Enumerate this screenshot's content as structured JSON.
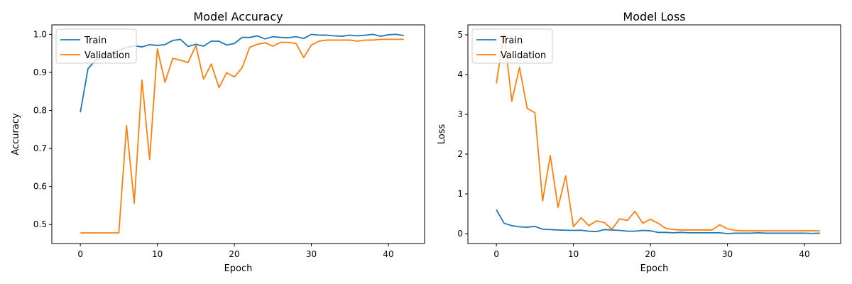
{
  "figure": {
    "background": "#ffffff"
  },
  "chart_data": [
    {
      "type": "line",
      "title": "Model Accuracy",
      "xlabel": "Epoch",
      "ylabel": "Accuracy",
      "xlim": [
        -3.7,
        44.7
      ],
      "ylim": [
        0.45,
        1.025
      ],
      "xticks": [
        0,
        10,
        20,
        30,
        40
      ],
      "xtick_labels": [
        "0",
        "10",
        "20",
        "30",
        "40"
      ],
      "yticks": [
        0.5,
        0.6,
        0.7,
        0.8,
        0.9,
        1.0
      ],
      "ytick_labels": [
        "0.5",
        "0.6",
        "0.7",
        "0.8",
        "0.9",
        "1.0"
      ],
      "grid": false,
      "legend_position": "top-left",
      "x": [
        0,
        1,
        2,
        3,
        4,
        5,
        6,
        7,
        8,
        9,
        10,
        11,
        12,
        13,
        14,
        15,
        16,
        17,
        18,
        19,
        20,
        21,
        22,
        23,
        24,
        25,
        26,
        27,
        28,
        29,
        30,
        31,
        32,
        33,
        34,
        35,
        36,
        37,
        38,
        39,
        40,
        41,
        42
      ],
      "series": [
        {
          "name": "Train",
          "color": "#1f77b4",
          "values": [
            0.795,
            0.91,
            0.932,
            0.945,
            0.952,
            0.958,
            0.965,
            0.97,
            0.967,
            0.973,
            0.971,
            0.973,
            0.984,
            0.987,
            0.968,
            0.974,
            0.969,
            0.982,
            0.982,
            0.972,
            0.976,
            0.992,
            0.992,
            0.996,
            0.988,
            0.994,
            0.992,
            0.991,
            0.994,
            0.989,
            1.0,
            0.998,
            0.998,
            0.996,
            0.995,
            0.998,
            0.996,
            0.998,
            1.0,
            0.995,
            0.999,
            1.0,
            0.997
          ]
        },
        {
          "name": "Validation",
          "color": "#ff7f0e",
          "values": [
            0.478,
            0.478,
            0.478,
            0.478,
            0.478,
            0.478,
            0.76,
            0.556,
            0.88,
            0.671,
            0.962,
            0.874,
            0.937,
            0.932,
            0.926,
            0.971,
            0.882,
            0.922,
            0.86,
            0.899,
            0.888,
            0.912,
            0.966,
            0.974,
            0.978,
            0.969,
            0.979,
            0.979,
            0.976,
            0.939,
            0.972,
            0.982,
            0.985,
            0.985,
            0.985,
            0.985,
            0.982,
            0.985,
            0.985,
            0.987,
            0.987,
            0.987,
            0.987
          ]
        }
      ]
    },
    {
      "type": "line",
      "title": "Model Loss",
      "xlabel": "Epoch",
      "ylabel": "Loss",
      "xlim": [
        -3.7,
        44.7
      ],
      "ylim": [
        -0.25,
        5.25
      ],
      "xticks": [
        0,
        10,
        20,
        30,
        40
      ],
      "xtick_labels": [
        "0",
        "10",
        "20",
        "30",
        "40"
      ],
      "yticks": [
        0,
        1,
        2,
        3,
        4,
        5
      ],
      "ytick_labels": [
        "0",
        "1",
        "2",
        "3",
        "4",
        "5"
      ],
      "grid": false,
      "legend_position": "top-left",
      "x": [
        0,
        1,
        2,
        3,
        4,
        5,
        6,
        7,
        8,
        9,
        10,
        11,
        12,
        13,
        14,
        15,
        16,
        17,
        18,
        19,
        20,
        21,
        22,
        23,
        24,
        25,
        26,
        27,
        28,
        29,
        30,
        31,
        32,
        33,
        34,
        35,
        36,
        37,
        38,
        39,
        40,
        41,
        42
      ],
      "series": [
        {
          "name": "Train",
          "color": "#1f77b4",
          "values": [
            0.6,
            0.26,
            0.2,
            0.17,
            0.16,
            0.18,
            0.11,
            0.1,
            0.09,
            0.085,
            0.08,
            0.085,
            0.06,
            0.05,
            0.1,
            0.09,
            0.08,
            0.06,
            0.06,
            0.08,
            0.07,
            0.03,
            0.03,
            0.02,
            0.03,
            0.02,
            0.02,
            0.02,
            0.02,
            0.02,
            0.0,
            0.01,
            0.01,
            0.01,
            0.02,
            0.01,
            0.01,
            0.01,
            0.01,
            0.01,
            0.01,
            0.005,
            0.01
          ]
        },
        {
          "name": "Validation",
          "color": "#ff7f0e",
          "values": [
            3.78,
            5.05,
            3.33,
            4.18,
            3.15,
            3.04,
            0.82,
            1.96,
            0.66,
            1.45,
            0.17,
            0.4,
            0.2,
            0.32,
            0.28,
            0.11,
            0.37,
            0.33,
            0.56,
            0.26,
            0.36,
            0.26,
            0.13,
            0.1,
            0.09,
            0.09,
            0.09,
            0.09,
            0.09,
            0.22,
            0.12,
            0.08,
            0.07,
            0.07,
            0.07,
            0.07,
            0.07,
            0.07,
            0.07,
            0.07,
            0.07,
            0.07,
            0.07
          ]
        }
      ]
    }
  ]
}
